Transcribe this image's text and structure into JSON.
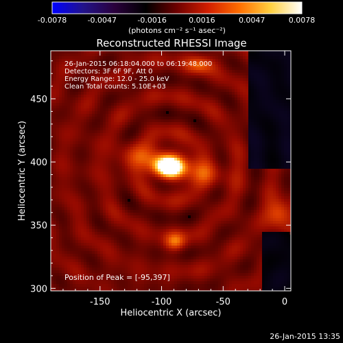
{
  "colorbar": {
    "ticks": [
      "-0.0078",
      "-0.0047",
      "-0.0016",
      "0.0016",
      "0.0047",
      "0.0078"
    ],
    "unit": "(photons cm⁻² s⁻¹ asec⁻²)",
    "stops": [
      "#0000ff",
      "#22138a",
      "#2a003c",
      "#000000",
      "#6e0000",
      "#d21e00",
      "#ff6e00",
      "#ffd040",
      "#ffffff"
    ]
  },
  "chart_data": {
    "type": "heatmap",
    "title": "Reconstructed RHESSI Image",
    "xlabel": "Heliocentric X (arcsec)",
    "ylabel": "Heliocentric Y (arcsec)",
    "xlim": [
      -190,
      5
    ],
    "ylim": [
      298,
      488
    ],
    "xticks": [
      -150,
      -100,
      -50,
      0
    ],
    "yticks": [
      300,
      350,
      400,
      450
    ],
    "peak": [
      -95,
      397
    ],
    "sources": [
      {
        "x": -95,
        "y": 397,
        "sx": 9,
        "sy": 6,
        "amp": 1.0
      },
      {
        "x": -110,
        "y": 404,
        "sx": 18,
        "sy": 8,
        "amp": 0.35
      },
      {
        "x": -70,
        "y": 392,
        "sx": 16,
        "sy": 8,
        "amp": 0.3
      },
      {
        "x": -90,
        "y": 338,
        "sx": 6,
        "sy": 5,
        "amp": 0.42
      },
      {
        "x": -5,
        "y": 360,
        "sx": 7,
        "sy": 8,
        "amp": 0.45
      },
      {
        "x": -70,
        "y": 478,
        "sx": 8,
        "sy": 5,
        "amp": 0.38
      }
    ],
    "annotations": [
      "26-Jan-2015 06:18:04.000 to 06:19:48.000",
      "Detectors: 3F 6F 9F, Att 0",
      "Energy Range: 12.0 - 25.0 keV",
      "Clean     Total counts: 5.10E+03"
    ],
    "peak_label": "Position of Peak = [-95,397]"
  },
  "footer": {
    "timestamp": "26-Jan-2015 13:35"
  }
}
